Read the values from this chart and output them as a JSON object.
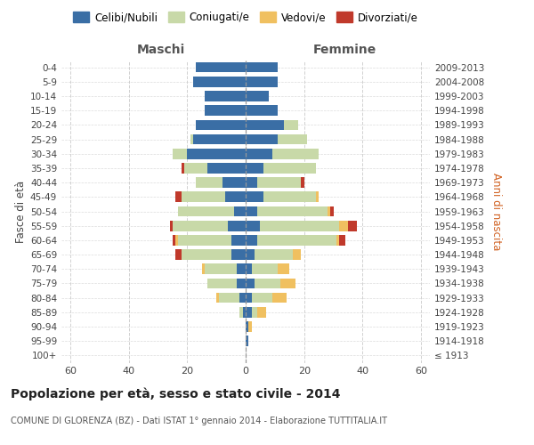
{
  "age_groups": [
    "100+",
    "95-99",
    "90-94",
    "85-89",
    "80-84",
    "75-79",
    "70-74",
    "65-69",
    "60-64",
    "55-59",
    "50-54",
    "45-49",
    "40-44",
    "35-39",
    "30-34",
    "25-29",
    "20-24",
    "15-19",
    "10-14",
    "5-9",
    "0-4"
  ],
  "birth_years": [
    "≤ 1913",
    "1914-1918",
    "1919-1923",
    "1924-1928",
    "1929-1933",
    "1934-1938",
    "1939-1943",
    "1944-1948",
    "1949-1953",
    "1954-1958",
    "1959-1963",
    "1964-1968",
    "1969-1973",
    "1974-1978",
    "1979-1983",
    "1984-1988",
    "1989-1993",
    "1994-1998",
    "1999-2003",
    "2004-2008",
    "2009-2013"
  ],
  "males": {
    "celibe": [
      0,
      0,
      0,
      1,
      2,
      3,
      3,
      5,
      5,
      6,
      4,
      7,
      8,
      13,
      20,
      18,
      17,
      14,
      14,
      18,
      17
    ],
    "coniugato": [
      0,
      0,
      0,
      1,
      7,
      10,
      11,
      17,
      18,
      19,
      19,
      15,
      9,
      8,
      5,
      1,
      0,
      0,
      0,
      0,
      0
    ],
    "vedovo": [
      0,
      0,
      0,
      0,
      1,
      0,
      1,
      0,
      1,
      0,
      0,
      0,
      0,
      0,
      0,
      0,
      0,
      0,
      0,
      0,
      0
    ],
    "divorziato": [
      0,
      0,
      0,
      0,
      0,
      0,
      0,
      2,
      1,
      1,
      0,
      2,
      0,
      1,
      0,
      0,
      0,
      0,
      0,
      0,
      0
    ]
  },
  "females": {
    "nubile": [
      0,
      1,
      1,
      2,
      2,
      3,
      2,
      3,
      4,
      5,
      4,
      6,
      4,
      6,
      9,
      11,
      13,
      11,
      8,
      11,
      11
    ],
    "coniugata": [
      0,
      0,
      0,
      2,
      7,
      9,
      9,
      13,
      27,
      27,
      24,
      18,
      15,
      18,
      16,
      10,
      5,
      0,
      0,
      0,
      0
    ],
    "vedova": [
      0,
      0,
      1,
      3,
      5,
      5,
      4,
      3,
      1,
      3,
      1,
      1,
      0,
      0,
      0,
      0,
      0,
      0,
      0,
      0,
      0
    ],
    "divorziata": [
      0,
      0,
      0,
      0,
      0,
      0,
      0,
      0,
      2,
      3,
      1,
      0,
      1,
      0,
      0,
      0,
      0,
      0,
      0,
      0,
      0
    ]
  },
  "colors": {
    "celibe_nubile": "#3a6ea5",
    "coniugato_coniugata": "#c8d9a8",
    "vedovo_vedova": "#f0c060",
    "divorziato_divorziata": "#c0392b"
  },
  "title": "Popolazione per età, sesso e stato civile - 2014",
  "subtitle": "COMUNE DI GLORENZA (BZ) - Dati ISTAT 1° gennaio 2014 - Elaborazione TUTTITALIA.IT",
  "label_maschi": "Maschi",
  "label_femmine": "Femmine",
  "ylabel_left": "Fasce di età",
  "ylabel_right": "Anni di nascita",
  "xlim": 63,
  "legend_labels": [
    "Celibi/Nubili",
    "Coniugati/e",
    "Vedovi/e",
    "Divorziati/e"
  ],
  "background_color": "#ffffff",
  "grid_color": "#cccccc"
}
